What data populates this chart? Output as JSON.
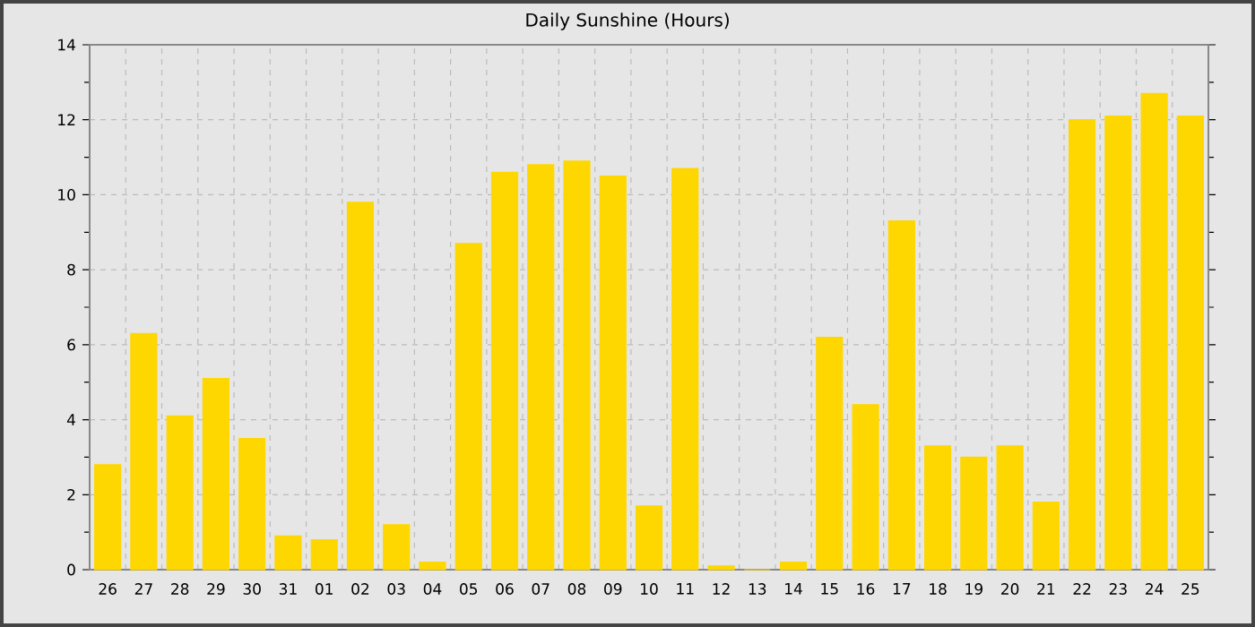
{
  "chart_data": {
    "type": "bar",
    "title": "Daily Sunshine (Hours)",
    "categories": [
      "26",
      "27",
      "28",
      "29",
      "30",
      "31",
      "01",
      "02",
      "03",
      "04",
      "05",
      "06",
      "07",
      "08",
      "09",
      "10",
      "11",
      "12",
      "13",
      "14",
      "15",
      "16",
      "17",
      "18",
      "19",
      "20",
      "21",
      "22",
      "23",
      "24",
      "25"
    ],
    "values": [
      2.8,
      6.3,
      4.1,
      5.1,
      3.5,
      0.9,
      0.8,
      9.8,
      1.2,
      0.2,
      8.7,
      10.6,
      10.8,
      10.9,
      10.5,
      1.7,
      10.7,
      0.1,
      0,
      0.2,
      6.2,
      4.4,
      9.3,
      3.3,
      3.0,
      3.3,
      1.8,
      12.0,
      12.1,
      12.7,
      12.1
    ],
    "color": "#ffd700",
    "ylim": [
      0,
      14
    ],
    "yticks": [
      0,
      {
        "value": 1,
        "label": null
      },
      2,
      {
        "value": 3,
        "label": null
      },
      4,
      {
        "value": 5,
        "label": null
      },
      6,
      {
        "value": 7,
        "label": null
      },
      8,
      {
        "value": 9,
        "label": null
      },
      10,
      {
        "value": 11,
        "label": null
      },
      12,
      {
        "value": 13,
        "label": null
      },
      14
    ],
    "grid": true
  }
}
